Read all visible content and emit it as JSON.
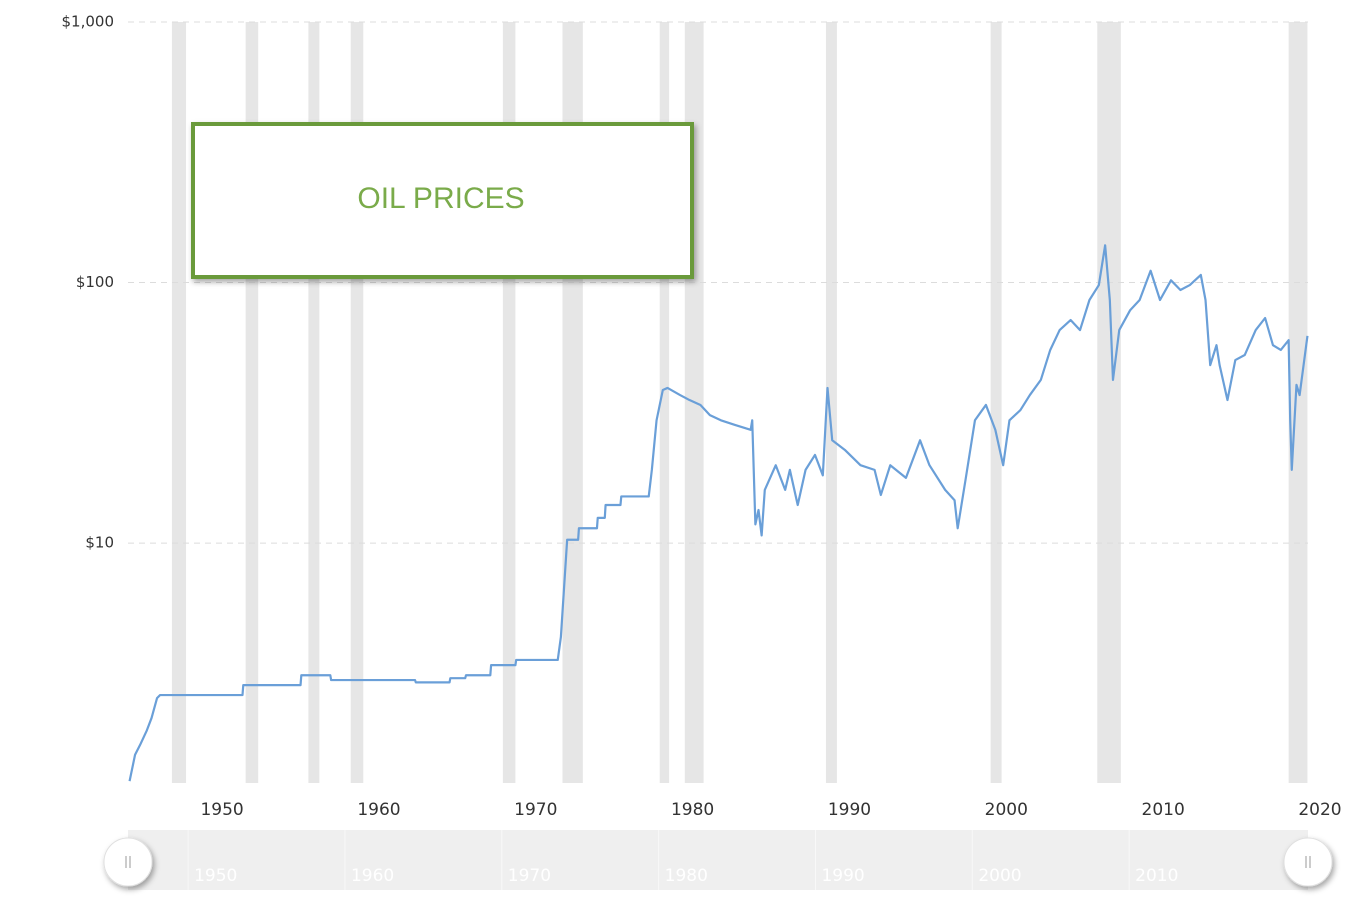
{
  "chart_data": {
    "type": "line",
    "annotation": "OIL PRICES",
    "log_y": true,
    "grid": true,
    "navigator": true,
    "color": "#6a9fd8",
    "shade_color": "#e6e6e6",
    "xlim": [
      1944,
      2020
    ],
    "xticks": [
      1950,
      1960,
      1970,
      1980,
      1990,
      2000,
      2010,
      2020
    ],
    "ylim": [
      1.2,
      1000
    ],
    "yticks": [
      {
        "value": 10,
        "label": "$10"
      },
      {
        "value": 100,
        "label": "$100"
      },
      {
        "value": 1000,
        "label": "$1,000"
      }
    ],
    "shaded_x_ranges": [
      [
        1946.8,
        1947.7
      ],
      [
        1951.5,
        1952.3
      ],
      [
        1955.5,
        1956.2
      ],
      [
        1958.2,
        1959.0
      ],
      [
        1967.9,
        1968.7
      ],
      [
        1971.7,
        1973.0
      ],
      [
        1977.9,
        1978.5
      ],
      [
        1979.5,
        1980.7
      ],
      [
        1988.5,
        1989.2
      ],
      [
        1999.0,
        1999.7
      ],
      [
        2005.8,
        2007.3
      ],
      [
        2018.0,
        2019.2
      ]
    ],
    "x": [
      1944.1,
      1944.45,
      1944.77,
      1945.2,
      1945.5,
      1945.85,
      1946.04,
      1951.3,
      1951.35,
      1955.0,
      1955.05,
      1956.9,
      1956.95,
      1962.3,
      1962.35,
      1964.5,
      1964.55,
      1965.5,
      1965.55,
      1967.1,
      1967.15,
      1968.7,
      1968.75,
      1971.4,
      1971.6,
      1972.0,
      1972.7,
      1972.75,
      1973.9,
      1973.95,
      1974.4,
      1974.45,
      1975.4,
      1975.45,
      1977.2,
      1977.4,
      1977.7,
      1978.1,
      1978.4,
      1979.2,
      1979.8,
      1980.5,
      1981.1,
      1981.8,
      1982.7,
      1983.7,
      1983.8,
      1984.0,
      1984.2,
      1984.4,
      1984.6,
      1985.3,
      1985.9,
      1986.2,
      1986.7,
      1987.2,
      1987.8,
      1988.3,
      1988.6,
      1988.9,
      1989.7,
      1990.7,
      1991.6,
      1992.0,
      1992.6,
      1993.6,
      1994.5,
      1995.1,
      1996.1,
      1996.7,
      1996.9,
      1997.4,
      1998.0,
      1998.7,
      1999.3,
      1999.8,
      2000.2,
      2000.9,
      2001.5,
      2002.2,
      2002.8,
      2003.4,
      2004.1,
      2004.7,
      2005.3,
      2005.9,
      2006.3,
      2006.6,
      2006.8,
      2007.2,
      2007.9,
      2008.5,
      2009.2,
      2009.8,
      2010.5,
      2011.1,
      2011.7,
      2012.4,
      2012.7,
      2013.0,
      2013.4,
      2013.6,
      2014.1,
      2014.6,
      2015.2,
      2015.9,
      2016.5,
      2017.0,
      2017.5,
      2018.0,
      2018.1,
      2018.2,
      2018.5,
      2018.7,
      2019.2
    ],
    "values": [
      1.22,
      1.54,
      1.68,
      1.91,
      2.13,
      2.54,
      2.61,
      2.61,
      2.85,
      2.85,
      3.11,
      3.11,
      2.98,
      2.98,
      2.92,
      2.92,
      3.03,
      3.03,
      3.11,
      3.11,
      3.4,
      3.4,
      3.56,
      3.56,
      4.36,
      10.3,
      10.3,
      11.4,
      11.4,
      12.5,
      12.5,
      14.0,
      14.0,
      15.1,
      15.1,
      19.1,
      29.6,
      38.7,
      39.4,
      37.0,
      35.4,
      33.9,
      31.0,
      29.6,
      28.4,
      27.2,
      29.6,
      11.8,
      13.4,
      10.7,
      16.0,
      19.9,
      16.0,
      19.1,
      14.0,
      19.1,
      21.8,
      18.2,
      39.4,
      24.8,
      22.8,
      19.9,
      19.1,
      15.3,
      19.9,
      17.8,
      24.8,
      19.9,
      16.0,
      14.6,
      11.4,
      17.5,
      29.6,
      33.9,
      27.2,
      19.9,
      29.6,
      32.4,
      37.0,
      42.3,
      55.1,
      65.7,
      71.8,
      65.7,
      85.7,
      97.8,
      139,
      85.7,
      42.3,
      65.7,
      78.4,
      85.7,
      111,
      85.7,
      102,
      93.6,
      97.8,
      107,
      85.7,
      48.2,
      57.5,
      48.2,
      35.4,
      50.4,
      52.7,
      65.7,
      73.1,
      57.5,
      55.1,
      60.1,
      29.6,
      19.1,
      40.5,
      37.0,
      62.4
    ]
  }
}
